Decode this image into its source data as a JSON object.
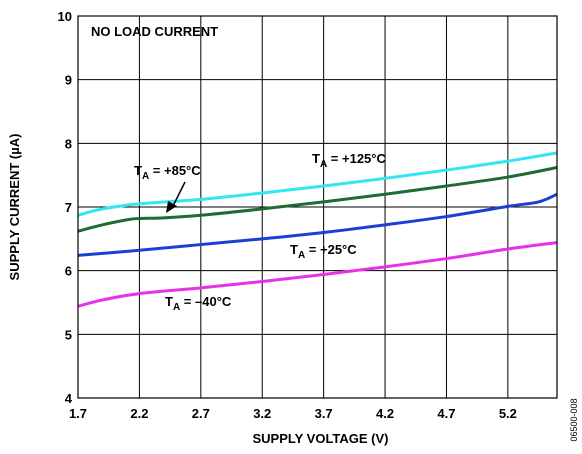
{
  "chart_data": {
    "type": "line",
    "xlabel": "SUPPLY VOLTAGE (V)",
    "ylabel": "SUPPLY CURRENT (µA)",
    "xlim": [
      1.7,
      5.6
    ],
    "ylim": [
      4,
      10
    ],
    "x_ticks": [
      "1.7",
      "2.2",
      "2.7",
      "3.2",
      "3.7",
      "4.2",
      "4.7",
      "5.2"
    ],
    "y_ticks": [
      "4",
      "5",
      "6",
      "7",
      "8",
      "9",
      "10"
    ],
    "grid": true,
    "annotation": "NO LOAD CURRENT",
    "figure_id": "06500-008",
    "series": [
      {
        "label_main": "T",
        "label_sub": "A",
        "label_rest": " = +125°C",
        "color": "#33e6f0",
        "points": [
          [
            1.7,
            6.87
          ],
          [
            1.9,
            6.97
          ],
          [
            2.2,
            7.05
          ],
          [
            2.7,
            7.12
          ],
          [
            3.2,
            7.22
          ],
          [
            3.7,
            7.33
          ],
          [
            4.2,
            7.45
          ],
          [
            4.7,
            7.58
          ],
          [
            5.2,
            7.72
          ],
          [
            5.6,
            7.85
          ]
        ]
      },
      {
        "label_main": "T",
        "label_sub": "A",
        "label_rest": " = +85°C",
        "color": "#1e6b33",
        "points": [
          [
            1.7,
            6.62
          ],
          [
            1.9,
            6.72
          ],
          [
            2.1,
            6.8
          ],
          [
            2.2,
            6.82
          ],
          [
            2.4,
            6.83
          ],
          [
            2.7,
            6.87
          ],
          [
            3.2,
            6.97
          ],
          [
            3.7,
            7.08
          ],
          [
            4.2,
            7.2
          ],
          [
            4.7,
            7.33
          ],
          [
            5.2,
            7.47
          ],
          [
            5.6,
            7.62
          ]
        ]
      },
      {
        "label_main": "T",
        "label_sub": "A",
        "label_rest": " = +25°C",
        "color": "#1a3fd6",
        "points": [
          [
            1.7,
            6.24
          ],
          [
            2.2,
            6.32
          ],
          [
            2.7,
            6.41
          ],
          [
            3.2,
            6.5
          ],
          [
            3.7,
            6.6
          ],
          [
            4.2,
            6.72
          ],
          [
            4.7,
            6.85
          ],
          [
            5.2,
            7.01
          ],
          [
            5.45,
            7.08
          ],
          [
            5.6,
            7.2
          ]
        ]
      },
      {
        "label_main": "T",
        "label_sub": "A",
        "label_rest": " = –40°C",
        "color": "#e632e6",
        "points": [
          [
            1.7,
            5.44
          ],
          [
            1.9,
            5.54
          ],
          [
            2.2,
            5.64
          ],
          [
            2.7,
            5.73
          ],
          [
            3.2,
            5.83
          ],
          [
            3.7,
            5.94
          ],
          [
            4.2,
            6.06
          ],
          [
            4.7,
            6.19
          ],
          [
            5.2,
            6.34
          ],
          [
            5.6,
            6.44
          ]
        ]
      }
    ]
  }
}
